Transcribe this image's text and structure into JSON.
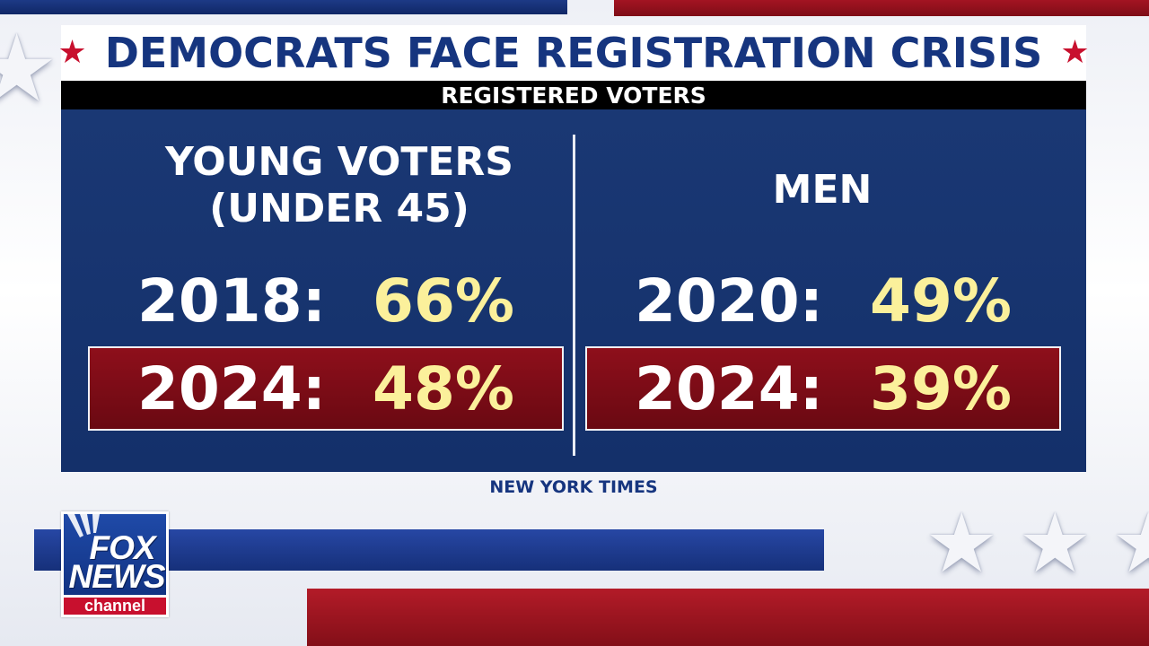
{
  "headline": {
    "title": "DEMOCRATS FACE REGISTRATION CRISIS",
    "star_left": "★",
    "star_right": "★",
    "accent_color": "#c8102e",
    "title_color": "#16357f"
  },
  "subheader": {
    "label": "REGISTERED VOTERS"
  },
  "columns": [
    {
      "heading_line1": "YOUNG VOTERS",
      "heading_line2": "(UNDER 45)",
      "rows": [
        {
          "year": "2018:",
          "value": "66%"
        },
        {
          "year": "2024:",
          "value": "48%"
        }
      ]
    },
    {
      "heading_line1": "MEN",
      "rows": [
        {
          "year": "2020:",
          "value": "49%"
        },
        {
          "year": "2024:",
          "value": "39%"
        }
      ]
    }
  ],
  "source": "NEW YORK TIMES",
  "logo": {
    "line1": "FOX",
    "line2": "NEWS",
    "line3": "channel"
  },
  "colors": {
    "panel_blue": "#1a3874",
    "highlight_red": "#8e0f1b",
    "value_yellow": "#fbf09b"
  }
}
